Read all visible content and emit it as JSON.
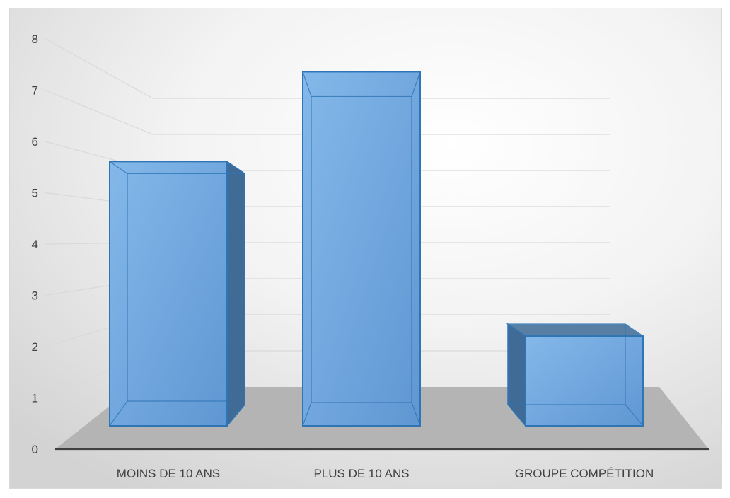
{
  "chart_data": {
    "type": "bar",
    "style": "3d-column",
    "categories": [
      "MOINS DE 10 ANS",
      "PLUS DE 10 ANS",
      "GROUPE COMPÉTITION"
    ],
    "values": [
      5.3,
      7.1,
      1.8
    ],
    "yticks": [
      "0",
      "1",
      "2",
      "3",
      "4",
      "5",
      "6",
      "7",
      "8"
    ],
    "ylim": [
      0,
      8
    ],
    "title": "",
    "xlabel": "",
    "ylabel": "",
    "grid": true,
    "legend": "none",
    "colors": {
      "bar_front": "#6fa8e0",
      "bar_side": "#3f6b96",
      "bar_top": "#9ecbf5",
      "bar_edge": "#2e75b6",
      "floor": "#b4b4b4",
      "grid": "#d9d9d9",
      "axis": "#404040"
    }
  }
}
